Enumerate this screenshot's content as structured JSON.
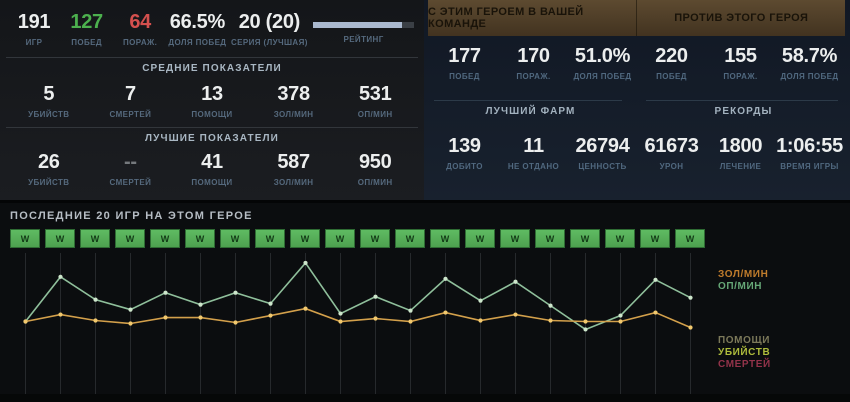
{
  "left_panel": {
    "summary": {
      "stats": [
        {
          "value": "191",
          "label": "ИГР"
        },
        {
          "value": "127",
          "label": "ПОБЕД"
        },
        {
          "value": "64",
          "label": "ПОРАЖ."
        },
        {
          "value": "66.5%",
          "label": "ДОЛЯ ПОБЕД"
        },
        {
          "value": "20 (20)",
          "label": "СЕРИЯ (ЛУЧШАЯ)"
        }
      ],
      "rating_label": "РЕЙТИНГ",
      "rating_percent": 88
    },
    "averages": {
      "title": "СРЕДНИЕ ПОКАЗАТЕЛИ",
      "stats": [
        {
          "value": "5",
          "label": "УБИЙСТВ"
        },
        {
          "value": "7",
          "label": "СМЕРТЕЙ"
        },
        {
          "value": "13",
          "label": "ПОМОЩИ"
        },
        {
          "value": "378",
          "label": "ЗОЛ/МИН"
        },
        {
          "value": "531",
          "label": "ОП/МИН"
        }
      ]
    },
    "best": {
      "title": "ЛУЧШИЕ ПОКАЗАТЕЛИ",
      "stats": [
        {
          "value": "26",
          "label": "УБИЙСТВ"
        },
        {
          "value": "--",
          "label": "СМЕРТЕЙ"
        },
        {
          "value": "41",
          "label": "ПОМОЩИ"
        },
        {
          "value": "587",
          "label": "ЗОЛ/МИН"
        },
        {
          "value": "950",
          "label": "ОП/МИН"
        }
      ]
    }
  },
  "right_panel": {
    "with_hero": {
      "title": "С ЭТИМ ГЕРОЕМ В ВАШЕЙ КОМАНДЕ",
      "stats": [
        {
          "value": "177",
          "label": "ПОБЕД"
        },
        {
          "value": "170",
          "label": "ПОРАЖ."
        },
        {
          "value": "51.0%",
          "label": "ДОЛЯ ПОБЕД"
        }
      ]
    },
    "against_hero": {
      "title": "ПРОТИВ ЭТОГО ГЕРОЯ",
      "stats": [
        {
          "value": "220",
          "label": "ПОБЕД"
        },
        {
          "value": "155",
          "label": "ПОРАЖ."
        },
        {
          "value": "58.7%",
          "label": "ДОЛЯ ПОБЕД"
        }
      ]
    },
    "best_farm": {
      "title": "ЛУЧШИЙ ФАРМ",
      "stats": [
        {
          "value": "139",
          "label": "ДОБИТО"
        },
        {
          "value": "11",
          "label": "НЕ ОТДАНО"
        },
        {
          "value": "26794",
          "label": "ЦЕННОСТЬ"
        }
      ]
    },
    "records": {
      "title": "РЕКОРДЫ",
      "stats": [
        {
          "value": "61673",
          "label": "УРОН"
        },
        {
          "value": "1800",
          "label": "ЛЕЧЕНИЕ"
        },
        {
          "value": "1:06:55",
          "label": "ВРЕМЯ ИГРЫ"
        }
      ]
    }
  },
  "chart_panel": {
    "title": "ПОСЛЕДНИЕ 20 ИГР НА ЭТОМ ГЕРОЕ",
    "legend_top": [
      {
        "label": "ЗОЛ/МИН",
        "color": "#c07c2c"
      },
      {
        "label": "ОП/МИН",
        "color": "#66a877"
      }
    ],
    "legend_bottom": [
      {
        "label": "ПОМОЩИ",
        "color": "#7c795a"
      },
      {
        "label": "УБИЙСТВ",
        "color": "#aebc3c"
      },
      {
        "label": "СМЕРТЕЙ",
        "color": "#93334a"
      }
    ]
  },
  "chart_data": {
    "type": "line",
    "title": "ПОСЛЕДНИЕ 20 ИГР НА ЭТОМ ГЕРОЕ",
    "x": [
      1,
      2,
      3,
      4,
      5,
      6,
      7,
      8,
      9,
      10,
      11,
      12,
      13,
      14,
      15,
      16,
      17,
      18,
      19,
      20
    ],
    "results": [
      "W",
      "W",
      "W",
      "W",
      "W",
      "W",
      "W",
      "W",
      "W",
      "W",
      "W",
      "W",
      "W",
      "W",
      "W",
      "W",
      "W",
      "W",
      "W",
      "W"
    ],
    "series": [
      {
        "name": "ЗОЛ/МИН",
        "color": "#d3a04b",
        "dot_color": "#f2c96e",
        "values": [
          365,
          400,
          370,
          355,
          385,
          385,
          360,
          395,
          430,
          365,
          380,
          365,
          410,
          370,
          400,
          370,
          365,
          365,
          410,
          335
        ]
      },
      {
        "name": "ОП/МИН",
        "color": "#8fbf9b",
        "dot_color": "#cde6cb",
        "values": [
          365,
          590,
          475,
          425,
          510,
          450,
          510,
          455,
          660,
          405,
          490,
          420,
          580,
          470,
          565,
          445,
          325,
          395,
          575,
          485
        ]
      }
    ],
    "ylim": [
      0,
      720
    ],
    "grid": "vertical-only",
    "legend_position": "right"
  },
  "colors": {
    "win_green": "#4cb04e",
    "loss_red": "#d4504e",
    "rating_fill": "#aab9cf",
    "badge_green": "#57b257",
    "gold_line": "#d3a04b",
    "xp_line": "#8fbf9b",
    "band_bronze": "#54422a",
    "panel_left_bg": "#17191d",
    "panel_right_bg": "#141c28",
    "chart_bg": "#0b0d0f"
  }
}
